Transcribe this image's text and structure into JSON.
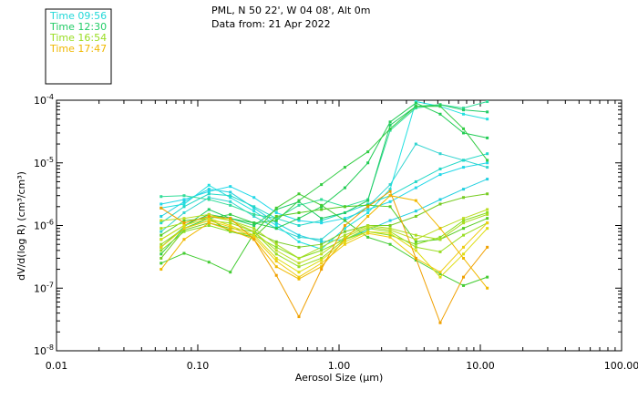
{
  "chart_data": {
    "type": "line",
    "title_line1": "PML, N 50 22', W 04 08', Alt 0m",
    "title_line2": "Data from: 21 Apr 2022",
    "xlabel": "Aerosol Size (µm)",
    "ylabel": "dV/d(log R) (cm³/cm³)",
    "xscale": "log",
    "yscale": "log",
    "xlim": [
      0.01,
      100
    ],
    "ylim": [
      1e-08,
      0.0001
    ],
    "legend_position": "top-left",
    "x_tick_labels": [
      "0.01",
      "0.10",
      "1.00",
      "10.00",
      "100.00"
    ],
    "y_tick_labels": [
      {
        "base": "10",
        "exp": "-8"
      },
      {
        "base": "10",
        "exp": "-7"
      },
      {
        "base": "10",
        "exp": "-6"
      },
      {
        "base": "10",
        "exp": "-5"
      },
      {
        "base": "10",
        "exp": "-4"
      }
    ],
    "x": [
      0.055,
      0.08,
      0.12,
      0.17,
      0.25,
      0.36,
      0.52,
      0.75,
      1.1,
      1.6,
      2.3,
      3.5,
      5.2,
      7.6,
      11.2
    ],
    "legend": [
      {
        "name": "Time 09:56",
        "color": "#22d8d8"
      },
      {
        "name": "Time 12:30",
        "color": "#22cc66"
      },
      {
        "name": "Time 16:54",
        "color": "#99dd22"
      },
      {
        "name": "Time 17:47",
        "color": "#f0b800"
      }
    ],
    "series": [
      {
        "name": "s01",
        "color": "#22d8e8",
        "values": [
          2.2e-06,
          2.6e-06,
          3.5e-06,
          4.2e-06,
          2.8e-06,
          1.6e-06,
          1.2e-06,
          1.1e-06,
          1.3e-06,
          1.8e-06,
          2.4e-06,
          4e-06,
          6.5e-06,
          8.5e-06,
          1e-05
        ]
      },
      {
        "name": "s02",
        "color": "#22d0e0",
        "values": [
          1.4e-06,
          2.4e-06,
          3.8e-06,
          3.4e-06,
          1.9e-06,
          1.1e-06,
          7e-07,
          5.5e-07,
          6e-07,
          8.5e-07,
          1.2e-06,
          1.7e-06,
          2.6e-06,
          3.8e-06,
          5.5e-06
        ]
      },
      {
        "name": "s03",
        "color": "#33d4d0",
        "values": [
          8e-07,
          1.6e-06,
          2.8e-06,
          2.4e-06,
          1.4e-06,
          9e-07,
          6.5e-07,
          6e-07,
          1.2e-06,
          2e-06,
          4.5e-06,
          2e-05,
          1.4e-05,
          1.1e-05,
          8.5e-06
        ]
      },
      {
        "name": "s04",
        "color": "#22e0e0",
        "values": [
          1.9e-06,
          2.2e-06,
          4.4e-06,
          2.8e-06,
          1.7e-06,
          1e-06,
          5.5e-07,
          4.2e-07,
          9e-07,
          1.6e-06,
          3.8e-06,
          9.5e-05,
          8e-05,
          6e-05,
          5e-05
        ]
      },
      {
        "name": "s05",
        "color": "#22d8c8",
        "values": [
          1.1e-06,
          2e-06,
          3.2e-06,
          3e-06,
          2e-06,
          1.3e-06,
          1e-06,
          1.2e-06,
          1.6e-06,
          2.2e-06,
          3e-06,
          5e-06,
          8e-06,
          1.1e-05,
          1.4e-05
        ]
      },
      {
        "name": "s06",
        "color": "#33dd99",
        "values": [
          2.9e-06,
          3e-06,
          2.6e-06,
          2.1e-06,
          1.5e-06,
          1.3e-06,
          2.1e-06,
          2.6e-06,
          2e-06,
          2.6e-06,
          3.3e-05,
          7.5e-05,
          8.5e-05,
          7.5e-05,
          9.5e-05
        ]
      },
      {
        "name": "s07",
        "color": "#22cc66",
        "values": [
          4.5e-07,
          9.5e-07,
          1.8e-06,
          1.3e-06,
          1e-06,
          1.8e-06,
          2.4e-06,
          1.3e-06,
          1.6e-06,
          2.5e-06,
          4e-05,
          8e-05,
          8.5e-05,
          7e-05,
          6.5e-05
        ]
      },
      {
        "name": "s08",
        "color": "#22cc55",
        "values": [
          6e-07,
          1e-06,
          1.5e-06,
          1.3e-06,
          1.1e-06,
          9e-07,
          1.3e-06,
          2e-06,
          4e-06,
          1e-05,
          4.5e-05,
          9e-05,
          6e-05,
          3e-05,
          2.5e-05
        ]
      },
      {
        "name": "s09",
        "color": "#33cc44",
        "values": [
          3.5e-07,
          9e-07,
          1.3e-06,
          1.5e-06,
          1.1e-06,
          1.2e-06,
          2.5e-06,
          4.5e-06,
          8.5e-06,
          1.5e-05,
          3.5e-05,
          8e-05,
          8e-05,
          3.5e-05,
          1.1e-05
        ]
      },
      {
        "name": "s10",
        "color": "#44cc33",
        "values": [
          2.5e-07,
          3.6e-07,
          2.6e-07,
          1.8e-07,
          7.5e-07,
          1.9e-06,
          3.2e-06,
          2.1e-06,
          1.2e-06,
          6.5e-07,
          5e-07,
          2.8e-07,
          1.7e-07,
          1.1e-07,
          1.5e-07
        ]
      },
      {
        "name": "s11",
        "color": "#55cc22",
        "values": [
          7e-07,
          1.2e-06,
          1.3e-06,
          8e-07,
          6.5e-07,
          1.4e-06,
          1.6e-06,
          1.8e-06,
          2e-06,
          2.1e-06,
          2e-06,
          5.5e-07,
          6e-07,
          9e-07,
          1.3e-06
        ]
      },
      {
        "name": "s12",
        "color": "#77cc22",
        "values": [
          3e-07,
          8.5e-07,
          1.1e-06,
          9e-07,
          8e-07,
          5.5e-07,
          4.5e-07,
          5e-07,
          8e-07,
          1e-06,
          1e-06,
          1.4e-06,
          2.2e-06,
          2.8e-06,
          3.2e-06
        ]
      },
      {
        "name": "s13",
        "color": "#88dd22",
        "values": [
          4e-07,
          8e-07,
          1e-06,
          8e-07,
          7e-07,
          4.5e-07,
          3e-07,
          4e-07,
          6e-07,
          8e-07,
          7e-07,
          5e-07,
          6.5e-07,
          1.2e-06,
          1.6e-06
        ]
      },
      {
        "name": "s14",
        "color": "#99dd22",
        "values": [
          5e-07,
          9e-07,
          1.2e-06,
          1.1e-06,
          8e-07,
          3.5e-07,
          2.2e-07,
          3e-07,
          6e-07,
          9e-07,
          8e-07,
          4.5e-07,
          3.8e-07,
          7e-07,
          1.1e-06
        ]
      },
      {
        "name": "s15",
        "color": "#aadd22",
        "values": [
          9e-07,
          1.1e-06,
          1.4e-06,
          1.2e-06,
          9e-07,
          5e-07,
          3e-07,
          4.5e-07,
          7e-07,
          1e-06,
          9e-07,
          7e-07,
          6e-07,
          1.1e-06,
          1.5e-06
        ]
      },
      {
        "name": "s16",
        "color": "#bbdd22",
        "values": [
          1.2e-06,
          1.3e-06,
          1.5e-06,
          1.2e-06,
          8e-07,
          4e-07,
          2.5e-07,
          3.5e-07,
          6.5e-07,
          9.5e-07,
          8.5e-07,
          6e-07,
          9e-07,
          1.3e-06,
          1.8e-06
        ]
      },
      {
        "name": "s17",
        "color": "#dddd11",
        "values": [
          6e-07,
          1e-06,
          1.3e-06,
          1e-06,
          7e-07,
          3e-07,
          1.8e-07,
          2.8e-07,
          5.5e-07,
          8e-07,
          7.5e-07,
          4e-07,
          1.5e-07,
          3.5e-07,
          9e-07
        ]
      },
      {
        "name": "s18",
        "color": "#eecc11",
        "values": [
          4.5e-07,
          9e-07,
          1.2e-06,
          9.5e-07,
          6.5e-07,
          2.7e-07,
          1.5e-07,
          2.5e-07,
          5e-07,
          7.5e-07,
          6.5e-07,
          3e-07,
          1.8e-07,
          4.5e-07,
          1.1e-06
        ]
      },
      {
        "name": "s19",
        "color": "#f0b800",
        "values": [
          2e-07,
          6e-07,
          1.1e-06,
          8.5e-07,
          6e-07,
          2.2e-07,
          1.4e-07,
          2.2e-07,
          6e-07,
          1.4e-06,
          3e-06,
          2.5e-06,
          9e-07,
          3e-07,
          1e-07
        ]
      },
      {
        "name": "s20",
        "color": "#f0a000",
        "values": [
          1.9e-06,
          1.1e-06,
          1.4e-06,
          1.3e-06,
          6e-07,
          1.6e-07,
          3.5e-08,
          2e-07,
          1e-06,
          2e-06,
          3.5e-06,
          3e-07,
          2.8e-08,
          1.5e-07,
          4.5e-07
        ]
      }
    ]
  }
}
